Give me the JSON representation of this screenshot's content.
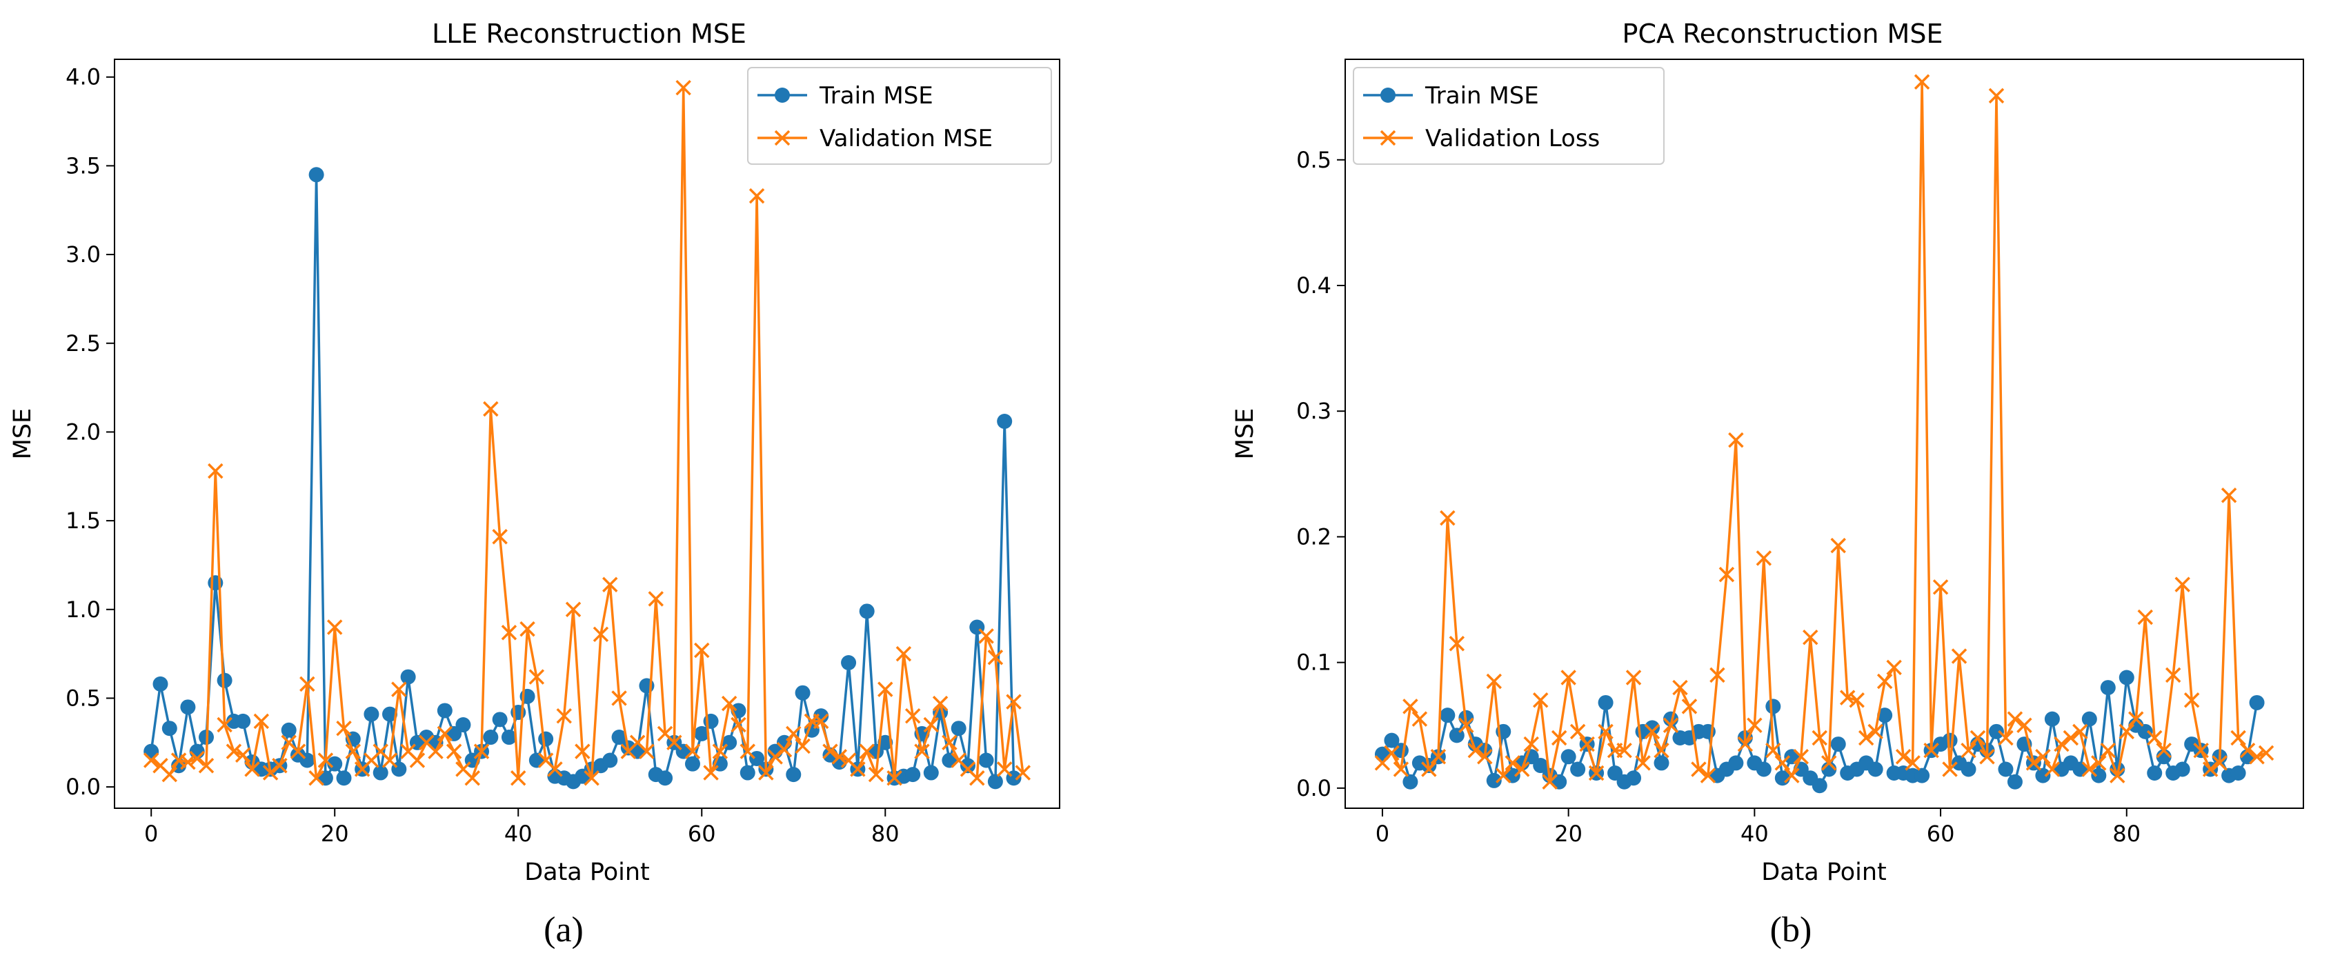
{
  "colors": {
    "train": "#1f77b4",
    "validation": "#ff7f0e"
  },
  "panel_labels": [
    "(a)",
    "(b)"
  ],
  "chart_data": [
    {
      "type": "line",
      "title": "LLE Reconstruction MSE",
      "xlabel": "Data Point",
      "ylabel": "MSE",
      "xlim": [
        -4,
        99
      ],
      "ylim": [
        -0.12,
        4.1
      ],
      "xticks": [
        0,
        20,
        40,
        60,
        80
      ],
      "yticks": [
        0.0,
        0.5,
        1.0,
        1.5,
        2.0,
        2.5,
        3.0,
        3.5,
        4.0
      ],
      "ytick_labels": [
        "0.0",
        "0.5",
        "1.0",
        "1.5",
        "2.0",
        "2.5",
        "3.0",
        "3.5",
        "4.0"
      ],
      "legend": "top-right",
      "series": [
        {
          "name": "Train MSE",
          "marker": "circle",
          "x_start": 0,
          "values": [
            0.2,
            0.58,
            0.33,
            0.12,
            0.45,
            0.2,
            0.28,
            1.15,
            0.6,
            0.37,
            0.37,
            0.14,
            0.1,
            0.1,
            0.12,
            0.32,
            0.18,
            0.15,
            3.45,
            0.05,
            0.13,
            0.05,
            0.27,
            0.1,
            0.41,
            0.08,
            0.41,
            0.1,
            0.62,
            0.25,
            0.28,
            0.25,
            0.43,
            0.3,
            0.35,
            0.15,
            0.2,
            0.28,
            0.38,
            0.28,
            0.42,
            0.51,
            0.15,
            0.27,
            0.06,
            0.05,
            0.03,
            0.06,
            0.1,
            0.12,
            0.15,
            0.28,
            0.22,
            0.2,
            0.57,
            0.07,
            0.05,
            0.25,
            0.2,
            0.13,
            0.3,
            0.37,
            0.13,
            0.25,
            0.43,
            0.08,
            0.16,
            0.1,
            0.2,
            0.25,
            0.07,
            0.53,
            0.32,
            0.4,
            0.18,
            0.14,
            0.7,
            0.1,
            0.99,
            0.2,
            0.25,
            0.05,
            0.06,
            0.07,
            0.3,
            0.08,
            0.42,
            0.15,
            0.33,
            0.12,
            0.9,
            0.15,
            0.03,
            2.06,
            0.05
          ]
        },
        {
          "name": "Validation MSE",
          "marker": "x",
          "x_start": 0,
          "values": [
            0.15,
            0.12,
            0.07,
            0.15,
            0.14,
            0.16,
            0.12,
            1.78,
            0.35,
            0.2,
            0.18,
            0.1,
            0.37,
            0.08,
            0.12,
            0.25,
            0.2,
            0.58,
            0.05,
            0.15,
            0.9,
            0.33,
            0.2,
            0.1,
            0.15,
            0.2,
            0.15,
            0.55,
            0.2,
            0.15,
            0.25,
            0.2,
            0.3,
            0.2,
            0.1,
            0.05,
            0.2,
            2.13,
            1.41,
            0.87,
            0.05,
            0.89,
            0.62,
            0.15,
            0.1,
            0.4,
            1.0,
            0.2,
            0.05,
            0.86,
            1.14,
            0.5,
            0.2,
            0.25,
            0.2,
            1.06,
            0.3,
            0.25,
            3.94,
            0.2,
            0.77,
            0.08,
            0.2,
            0.47,
            0.35,
            0.2,
            3.33,
            0.08,
            0.17,
            0.21,
            0.3,
            0.23,
            0.37,
            0.37,
            0.2,
            0.17,
            0.15,
            0.1,
            0.2,
            0.07,
            0.55,
            0.05,
            0.75,
            0.4,
            0.2,
            0.35,
            0.47,
            0.25,
            0.15,
            0.1,
            0.05,
            0.85,
            0.73,
            0.1,
            0.48,
            0.08
          ]
        }
      ]
    },
    {
      "type": "line",
      "title": "PCA Reconstruction MSE",
      "xlabel": "Data Point",
      "ylabel": "MSE",
      "xlim": [
        -4,
        99
      ],
      "ylim": [
        -0.016,
        0.58
      ],
      "xticks": [
        0,
        20,
        40,
        60,
        80
      ],
      "yticks": [
        0.0,
        0.1,
        0.2,
        0.3,
        0.4,
        0.5
      ],
      "ytick_labels": [
        "0.0",
        "0.1",
        "0.2",
        "0.3",
        "0.4",
        "0.5"
      ],
      "legend": "top-left",
      "series": [
        {
          "name": "Train MSE",
          "marker": "circle",
          "x_start": 0,
          "values": [
            0.027,
            0.038,
            0.03,
            0.005,
            0.02,
            0.018,
            0.025,
            0.058,
            0.042,
            0.056,
            0.035,
            0.03,
            0.006,
            0.045,
            0.01,
            0.02,
            0.025,
            0.018,
            0.01,
            0.005,
            0.025,
            0.015,
            0.035,
            0.012,
            0.068,
            0.012,
            0.005,
            0.008,
            0.045,
            0.048,
            0.02,
            0.055,
            0.04,
            0.04,
            0.045,
            0.045,
            0.01,
            0.015,
            0.02,
            0.04,
            0.02,
            0.015,
            0.065,
            0.008,
            0.025,
            0.015,
            0.008,
            0.002,
            0.015,
            0.035,
            0.012,
            0.015,
            0.02,
            0.015,
            0.058,
            0.012,
            0.012,
            0.01,
            0.01,
            0.03,
            0.035,
            0.038,
            0.02,
            0.015,
            0.035,
            0.03,
            0.045,
            0.015,
            0.005,
            0.035,
            0.02,
            0.01,
            0.055,
            0.015,
            0.02,
            0.015,
            0.055,
            0.01,
            0.08,
            0.015,
            0.088,
            0.05,
            0.045,
            0.012,
            0.025,
            0.012,
            0.015,
            0.035,
            0.03,
            0.015,
            0.025,
            0.01,
            0.012,
            0.025,
            0.068
          ]
        },
        {
          "name": "Validation Loss",
          "marker": "x",
          "x_start": 0,
          "values": [
            0.02,
            0.028,
            0.015,
            0.065,
            0.055,
            0.015,
            0.025,
            0.215,
            0.115,
            0.05,
            0.03,
            0.025,
            0.085,
            0.01,
            0.02,
            0.015,
            0.035,
            0.07,
            0.005,
            0.04,
            0.088,
            0.045,
            0.035,
            0.012,
            0.045,
            0.03,
            0.03,
            0.088,
            0.02,
            0.045,
            0.03,
            0.05,
            0.08,
            0.065,
            0.015,
            0.01,
            0.09,
            0.17,
            0.277,
            0.035,
            0.05,
            0.183,
            0.03,
            0.02,
            0.01,
            0.025,
            0.12,
            0.04,
            0.02,
            0.193,
            0.072,
            0.07,
            0.04,
            0.045,
            0.085,
            0.096,
            0.025,
            0.02,
            0.562,
            0.03,
            0.16,
            0.015,
            0.105,
            0.03,
            0.04,
            0.025,
            0.551,
            0.04,
            0.055,
            0.05,
            0.02,
            0.025,
            0.015,
            0.035,
            0.04,
            0.045,
            0.015,
            0.02,
            0.03,
            0.01,
            0.045,
            0.055,
            0.136,
            0.04,
            0.03,
            0.09,
            0.162,
            0.07,
            0.03,
            0.015,
            0.02,
            0.233,
            0.04,
            0.03,
            0.025,
            0.028
          ]
        }
      ]
    }
  ]
}
